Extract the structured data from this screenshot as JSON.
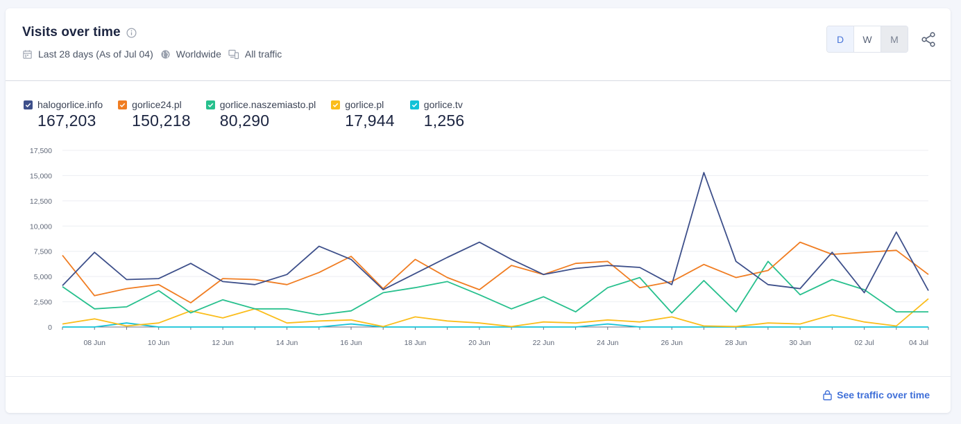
{
  "header": {
    "title": "Visits over time",
    "filters": [
      {
        "icon": "calendar-icon",
        "label": "Last 28 days (As of Jul 04)"
      },
      {
        "icon": "globe-icon",
        "label": "Worldwide"
      },
      {
        "icon": "devices-icon",
        "label": "All traffic"
      }
    ],
    "granularity": [
      {
        "label": "D",
        "state": "active"
      },
      {
        "label": "W",
        "state": "normal"
      },
      {
        "label": "M",
        "state": "disabled"
      }
    ]
  },
  "footer": {
    "link_label": "See traffic over time"
  },
  "colors": {
    "accent": "#4a76d9",
    "link": "#3f6fd8"
  },
  "chart_data": {
    "type": "line",
    "x": [
      "07 Jun",
      "08 Jun",
      "09 Jun",
      "10 Jun",
      "11 Jun",
      "12 Jun",
      "13 Jun",
      "14 Jun",
      "15 Jun",
      "16 Jun",
      "17 Jun",
      "18 Jun",
      "19 Jun",
      "20 Jun",
      "21 Jun",
      "22 Jun",
      "23 Jun",
      "24 Jun",
      "25 Jun",
      "26 Jun",
      "27 Jun",
      "28 Jun",
      "29 Jun",
      "30 Jun",
      "01 Jul",
      "02 Jul",
      "03 Jul",
      "04 Jul"
    ],
    "x_tick_labels": [
      "08 Jun",
      "10 Jun",
      "12 Jun",
      "14 Jun",
      "16 Jun",
      "18 Jun",
      "20 Jun",
      "22 Jun",
      "24 Jun",
      "26 Jun",
      "28 Jun",
      "30 Jun",
      "02 Jul",
      "04 Jul"
    ],
    "y_ticks": [
      "0",
      "2,500",
      "5,000",
      "7,500",
      "10,000",
      "12,500",
      "15,000",
      "17,500"
    ],
    "ylim": [
      0,
      17500
    ],
    "grid": true,
    "legend_position": "top-left",
    "series": [
      {
        "name": "halogorlice.info",
        "total": "167,203",
        "color": "#3d4f8a",
        "values": [
          4100,
          7400,
          4700,
          4800,
          6300,
          4500,
          4200,
          5200,
          8000,
          6700,
          3700,
          5300,
          6900,
          8400,
          6700,
          5200,
          5800,
          6100,
          5900,
          4200,
          15300,
          6500,
          4200,
          3800,
          7400,
          3400,
          9400,
          3600
        ]
      },
      {
        "name": "gorlice24.pl",
        "total": "150,218",
        "color": "#f07d22",
        "values": [
          7100,
          3100,
          3800,
          4200,
          2400,
          4800,
          4700,
          4200,
          5400,
          7000,
          3800,
          6700,
          4900,
          3700,
          6100,
          5200,
          6300,
          6500,
          3900,
          4500,
          6200,
          4900,
          5600,
          8400,
          7200,
          7400,
          7600,
          5200
        ]
      },
      {
        "name": "gorlice.naszemiasto.pl",
        "total": "80,290",
        "color": "#27c08d",
        "values": [
          4000,
          1800,
          2000,
          3600,
          1400,
          2700,
          1800,
          1800,
          1200,
          1600,
          3400,
          3900,
          4500,
          3200,
          1800,
          3000,
          1500,
          3900,
          4900,
          1400,
          4600,
          1500,
          6500,
          3200,
          4700,
          3700,
          1500,
          1500
        ]
      },
      {
        "name": "gorlice.pl",
        "total": "17,944",
        "color": "#fbbd1b",
        "values": [
          300,
          800,
          100,
          400,
          1600,
          900,
          1800,
          400,
          600,
          700,
          50,
          1000,
          600,
          400,
          50,
          500,
          400,
          700,
          500,
          1000,
          100,
          50,
          400,
          300,
          1200,
          500,
          100,
          2800
        ]
      },
      {
        "name": "gorlice.tv",
        "total": "1,256",
        "color": "#12c2d8",
        "values": [
          0,
          0,
          400,
          0,
          0,
          0,
          0,
          0,
          0,
          300,
          0,
          0,
          0,
          0,
          0,
          0,
          0,
          300,
          0,
          0,
          0,
          0,
          0,
          0,
          0,
          0,
          0,
          0
        ]
      }
    ]
  }
}
